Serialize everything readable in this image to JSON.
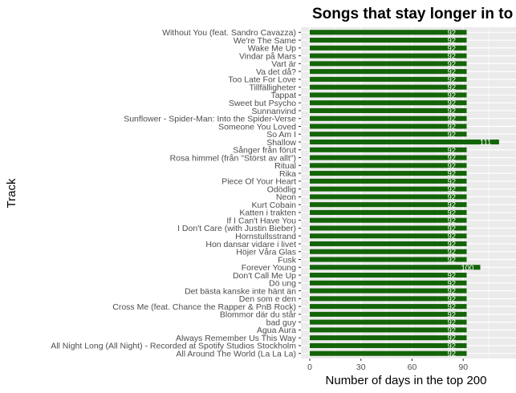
{
  "chart_data": {
    "type": "bar",
    "orientation": "horizontal",
    "title": "Songs that stay longer in to",
    "xlabel": "Number of days in the top 200",
    "ylabel": "Track",
    "xlim": [
      0,
      115
    ],
    "xticks": [
      0,
      30,
      60,
      90
    ],
    "grid": true,
    "bar_color": "#136407",
    "panel_color": "#ebebeb",
    "categories": [
      "Without You (feat. Sandro Cavazza)",
      "We're The Same",
      "Wake Me Up",
      "Vindar på Mars",
      "Vart är",
      "Va det då?",
      "Too Late For Love",
      "Tillfälligheter",
      "Tappat",
      "Sweet but Psycho",
      "Sunnanvind",
      "Sunflower - Spider-Man: Into the Spider-Verse",
      "Someone You Loved",
      "So Am I",
      "Shallow",
      "Sånger från förut",
      "Rosa himmel (från \"Störst av allt\")",
      "Ritual",
      "Rika",
      "Piece Of Your Heart",
      "Odödlig",
      "Neon",
      "Kurt Cobain",
      "Katten i trakten",
      "If I Can't Have You",
      "I Don't Care (with Justin Bieber)",
      "Hornstullsstrand",
      "Hon dansar vidare i livet",
      "Höjer Våra Glas",
      "Fusk",
      "Forever Young",
      "Don't Call Me Up",
      "Dö ung",
      "Det bästa kanske inte hänt än",
      "Den som e den",
      "Cross Me (feat. Chance the Rapper & PnB Rock)",
      "Blommor där du står",
      "bad guy",
      "Agua Aura",
      "Always Remember Us This Way",
      "All Night Long (All Night) - Recorded at Spotify Studios Stockholm",
      "All Around The World (La La La)"
    ],
    "values": [
      92,
      92,
      92,
      92,
      92,
      92,
      92,
      92,
      92,
      92,
      92,
      92,
      92,
      92,
      111,
      92,
      92,
      92,
      92,
      92,
      92,
      92,
      92,
      92,
      92,
      92,
      92,
      92,
      92,
      92,
      100,
      92,
      92,
      92,
      92,
      92,
      92,
      92,
      92,
      92,
      92,
      92
    ]
  }
}
